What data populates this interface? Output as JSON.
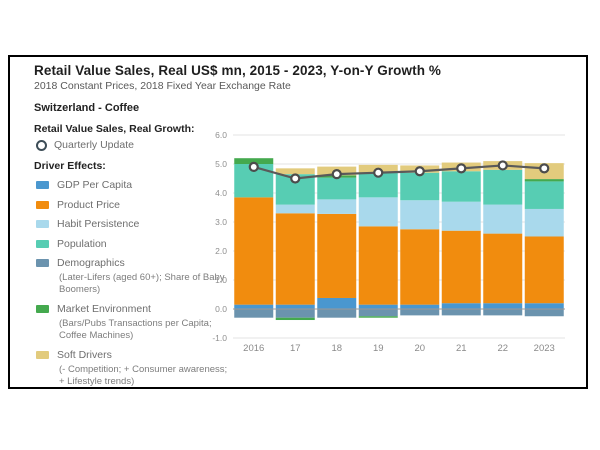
{
  "header": {
    "title": "Retail Value Sales, Real US$ mn, 2015 - 2023, Y-on-Y Growth %",
    "subtitle": "2018 Constant Prices, 2018 Fixed Year Exchange Rate",
    "geography": "Switzerland - Coffee"
  },
  "legend": {
    "line_section_title": "Retail Value Sales, Real Growth:",
    "line_series_label": "Quarterly Update",
    "drivers_section_title": "Driver Effects:",
    "items": [
      {
        "label": "GDP Per Capita",
        "color": "#4a97cf",
        "note": ""
      },
      {
        "label": "Product Price",
        "color": "#f18c0e",
        "note": ""
      },
      {
        "label": "Habit Persistence",
        "color": "#a9d9ec",
        "note": ""
      },
      {
        "label": "Population",
        "color": "#57cdb3",
        "note": ""
      },
      {
        "label": "Demographics",
        "color": "#6b93ae",
        "note": "(Later-Lifers (aged 60+); Share of Baby Boomers)"
      },
      {
        "label": "Market Environment",
        "color": "#44a94e",
        "note": "(Bars/Pubs Transactions per Capita; Coffee Machines)"
      },
      {
        "label": "Soft Drivers",
        "color": "#e2cb7d",
        "note": "(- Competition; + Consumer awareness; + Lifestyle trends)"
      }
    ]
  },
  "chart_data": {
    "type": "bar",
    "subtype": "stacked-bars-with-line-overlay",
    "title": "",
    "xlabel": "",
    "ylabel": "",
    "grid": true,
    "legend_position": "left",
    "ylim": [
      -1.0,
      6.0
    ],
    "ytick_labels": [
      "6.0",
      "5.0",
      "4.0",
      "3.0",
      "2.0",
      "1.0",
      "0.0",
      "-1.0"
    ],
    "categories": [
      "2016",
      "17",
      "18",
      "19",
      "20",
      "21",
      "22",
      "2023"
    ],
    "series": [
      {
        "name": "GDP Per Capita",
        "color": "#4a97cf",
        "values": [
          0.15,
          0.15,
          0.38,
          0.15,
          0.15,
          0.2,
          0.2,
          0.2
        ]
      },
      {
        "name": "Product Price",
        "color": "#f18c0e",
        "values": [
          3.7,
          3.15,
          2.9,
          2.7,
          2.6,
          2.5,
          2.4,
          2.3
        ]
      },
      {
        "name": "Habit Persistence",
        "color": "#a9d9ec",
        "values": [
          0.0,
          0.3,
          0.5,
          1.0,
          1.0,
          1.0,
          1.0,
          0.95
        ]
      },
      {
        "name": "Population",
        "color": "#57cdb3",
        "values": [
          1.15,
          1.05,
          0.75,
          0.85,
          0.95,
          1.05,
          1.2,
          0.95
        ]
      },
      {
        "name": "Demographics",
        "color": "#6b93ae",
        "values": [
          -0.3,
          -0.3,
          -0.3,
          -0.25,
          -0.22,
          -0.22,
          -0.22,
          -0.25
        ]
      },
      {
        "name": "Market Environment",
        "color": "#44a94e",
        "values": [
          0.2,
          -0.08,
          0.08,
          -0.05,
          0.0,
          0.0,
          0.0,
          0.08
        ]
      },
      {
        "name": "Soft Drivers",
        "color": "#e2cb7d",
        "values": [
          0.0,
          0.2,
          0.3,
          0.27,
          0.25,
          0.3,
          0.3,
          0.55
        ]
      }
    ],
    "line": {
      "name": "Quarterly Update",
      "color": "#5a5a5a",
      "marker": "open-circle",
      "values": [
        4.9,
        4.5,
        4.65,
        4.7,
        4.75,
        4.85,
        4.95,
        4.85
      ]
    }
  }
}
